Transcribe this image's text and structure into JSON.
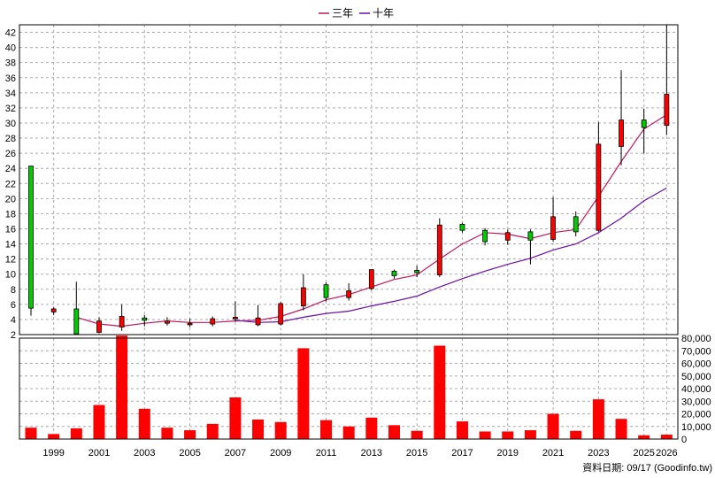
{
  "chart_data": {
    "type": "candlestick+bar",
    "legend": [
      {
        "label": "三年",
        "color": "#c0185c"
      },
      {
        "label": "十年",
        "color": "#6a0dad"
      }
    ],
    "price_axis": {
      "min": 2,
      "max": 43,
      "ticks": [
        2,
        4,
        6,
        8,
        10,
        12,
        14,
        16,
        18,
        20,
        22,
        24,
        26,
        28,
        30,
        32,
        34,
        36,
        38,
        40,
        42
      ]
    },
    "volume_axis": {
      "min": 0,
      "max": 80000,
      "ticks": [
        "0",
        "10,000",
        "20,000",
        "30,000",
        "40,000",
        "50,000",
        "60,000",
        "70,000",
        "80,000"
      ],
      "tick_values": [
        0,
        10000,
        20000,
        30000,
        40000,
        50000,
        60000,
        70000,
        80000
      ]
    },
    "x_labels": [
      "1999",
      "2001",
      "2003",
      "2005",
      "2007",
      "2009",
      "2011",
      "2013",
      "2015",
      "2017",
      "2019",
      "2021",
      "2023",
      "2025",
      "2026"
    ],
    "x_label_years": [
      1999,
      2001,
      2003,
      2005,
      2007,
      2009,
      2011,
      2013,
      2015,
      2017,
      2019,
      2021,
      2023,
      2025,
      2026
    ],
    "candles": [
      {
        "year": 1998,
        "open": 5.5,
        "close": 24.3,
        "high": 24.3,
        "low": 4.5
      },
      {
        "year": 1999,
        "open": 5.4,
        "close": 5.0,
        "high": 5.6,
        "low": 4.6
      },
      {
        "year": 2000,
        "open": 2.1,
        "close": 5.4,
        "high": 9.0,
        "low": 2.1
      },
      {
        "year": 2001,
        "open": 3.8,
        "close": 2.3,
        "high": 4.3,
        "low": 2.2
      },
      {
        "year": 2002,
        "open": 4.4,
        "close": 3.0,
        "high": 6.0,
        "low": 2.5
      },
      {
        "year": 2003,
        "open": 3.9,
        "close": 4.2,
        "high": 4.6,
        "low": 3.1
      },
      {
        "year": 2004,
        "open": 3.8,
        "close": 3.5,
        "high": 4.3,
        "low": 3.2
      },
      {
        "year": 2005,
        "open": 3.5,
        "close": 3.3,
        "high": 4.1,
        "low": 3.0
      },
      {
        "year": 2006,
        "open": 4.1,
        "close": 3.4,
        "high": 4.4,
        "low": 3.1
      },
      {
        "year": 2007,
        "open": 4.3,
        "close": 4.1,
        "high": 6.4,
        "low": 3.7
      },
      {
        "year": 2008,
        "open": 4.2,
        "close": 3.3,
        "high": 5.9,
        "low": 3.1
      },
      {
        "year": 2009,
        "open": 6.1,
        "close": 3.4,
        "high": 6.3,
        "low": 3.2
      },
      {
        "year": 2010,
        "open": 8.2,
        "close": 5.8,
        "high": 10.0,
        "low": 5.2
      },
      {
        "year": 2011,
        "open": 6.9,
        "close": 8.6,
        "high": 8.9,
        "low": 6.4
      },
      {
        "year": 2012,
        "open": 7.8,
        "close": 6.9,
        "high": 8.8,
        "low": 6.5
      },
      {
        "year": 2013,
        "open": 10.6,
        "close": 8.1,
        "high": 10.6,
        "low": 7.9
      },
      {
        "year": 2014,
        "open": 9.8,
        "close": 10.4,
        "high": 10.6,
        "low": 9.4
      },
      {
        "year": 2015,
        "open": 10.2,
        "close": 10.5,
        "high": 11.1,
        "low": 9.6
      },
      {
        "year": 2016,
        "open": 16.5,
        "close": 9.9,
        "high": 17.4,
        "low": 9.6
      },
      {
        "year": 2017,
        "open": 15.8,
        "close": 16.6,
        "high": 16.8,
        "low": 15.5
      },
      {
        "year": 2018,
        "open": 14.3,
        "close": 15.8,
        "high": 16.1,
        "low": 13.8
      },
      {
        "year": 2019,
        "open": 15.5,
        "close": 14.5,
        "high": 15.9,
        "low": 13.9
      },
      {
        "year": 2020,
        "open": 14.5,
        "close": 15.6,
        "high": 15.9,
        "low": 11.3
      },
      {
        "year": 2021,
        "open": 17.6,
        "close": 14.6,
        "high": 20.2,
        "low": 14.3
      },
      {
        "year": 2022,
        "open": 15.6,
        "close": 17.6,
        "high": 18.3,
        "low": 15.0
      },
      {
        "year": 2023,
        "open": 27.2,
        "close": 15.8,
        "high": 30.1,
        "low": 15.6
      },
      {
        "year": 2024,
        "open": 30.4,
        "close": 26.9,
        "high": 37.0,
        "low": 24.4
      },
      {
        "year": 2025,
        "open": 29.4,
        "close": 30.4,
        "high": 31.9,
        "low": 26.0
      },
      {
        "year": 2026,
        "open": 33.8,
        "close": 29.7,
        "high": 43.0,
        "low": 28.4
      }
    ],
    "ma3": {
      "name": "三年",
      "years": [
        2000,
        2001,
        2002,
        2003,
        2004,
        2005,
        2006,
        2007,
        2008,
        2009,
        2010,
        2011,
        2012,
        2013,
        2014,
        2015,
        2016,
        2017,
        2018,
        2019,
        2020,
        2021,
        2022,
        2023,
        2024,
        2025,
        2026
      ],
      "values": [
        4.3,
        3.4,
        3.1,
        3.5,
        3.8,
        3.6,
        3.6,
        3.8,
        3.9,
        4.4,
        5.4,
        6.6,
        7.3,
        8.3,
        9.3,
        9.9,
        12.0,
        14.0,
        15.5,
        15.3,
        14.7,
        15.5,
        15.9,
        20.3,
        24.9,
        29.2,
        31.1
      ]
    },
    "ma10": {
      "name": "十年",
      "years": [
        2007,
        2008,
        2009,
        2010,
        2011,
        2012,
        2013,
        2014,
        2015,
        2016,
        2017,
        2018,
        2019,
        2020,
        2021,
        2022,
        2023,
        2024,
        2025,
        2026
      ],
      "values": [
        3.9,
        3.6,
        3.7,
        4.3,
        4.8,
        5.1,
        5.8,
        6.4,
        7.1,
        8.3,
        9.4,
        10.4,
        11.3,
        12.1,
        13.2,
        14.0,
        15.5,
        17.4,
        19.7,
        21.4
      ]
    },
    "volumes": [
      {
        "year": 1998,
        "value": 9000
      },
      {
        "year": 1999,
        "value": 4000
      },
      {
        "year": 2000,
        "value": 8500
      },
      {
        "year": 2001,
        "value": 27000
      },
      {
        "year": 2002,
        "value": 82000
      },
      {
        "year": 2003,
        "value": 24000
      },
      {
        "year": 2004,
        "value": 9000
      },
      {
        "year": 2005,
        "value": 7000
      },
      {
        "year": 2006,
        "value": 12000
      },
      {
        "year": 2007,
        "value": 33000
      },
      {
        "year": 2008,
        "value": 15500
      },
      {
        "year": 2009,
        "value": 13500
      },
      {
        "year": 2010,
        "value": 72000
      },
      {
        "year": 2011,
        "value": 15000
      },
      {
        "year": 2012,
        "value": 10000
      },
      {
        "year": 2013,
        "value": 17000
      },
      {
        "year": 2014,
        "value": 11000
      },
      {
        "year": 2015,
        "value": 6500
      },
      {
        "year": 2016,
        "value": 74000
      },
      {
        "year": 2017,
        "value": 14000
      },
      {
        "year": 2018,
        "value": 6000
      },
      {
        "year": 2019,
        "value": 6000
      },
      {
        "year": 2020,
        "value": 7000
      },
      {
        "year": 2021,
        "value": 20000
      },
      {
        "year": 2022,
        "value": 6500
      },
      {
        "year": 2023,
        "value": 31500
      },
      {
        "year": 2024,
        "value": 16000
      },
      {
        "year": 2025,
        "value": 3000
      },
      {
        "year": 2026,
        "value": 3500
      }
    ],
    "footnote": "資料日期: 09/17  (Goodinfo.tw)",
    "colors": {
      "up": "#ff0000",
      "down": "#00cc00",
      "volume": "#ff0000",
      "grid": "#aaaaaa",
      "axis": "#000000"
    }
  }
}
